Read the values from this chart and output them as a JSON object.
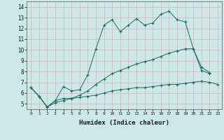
{
  "xlabel": "Humidex (Indice chaleur)",
  "bg_color": "#cce8e8",
  "grid_color": "#ddb8b8",
  "line_color": "#1a6b5e",
  "xlim": [
    -0.5,
    23.5
  ],
  "ylim": [
    4.5,
    14.5
  ],
  "xticks": [
    0,
    1,
    2,
    3,
    4,
    5,
    6,
    7,
    8,
    9,
    10,
    11,
    12,
    13,
    14,
    15,
    16,
    17,
    18,
    19,
    20,
    21,
    22,
    23
  ],
  "yticks": [
    5,
    6,
    7,
    8,
    9,
    10,
    11,
    12,
    13,
    14
  ],
  "series": [
    [
      6.5,
      5.7,
      4.7,
      5.3,
      6.6,
      6.2,
      6.3,
      7.7,
      10.1,
      12.3,
      12.8,
      11.7,
      12.3,
      12.9,
      12.3,
      12.5,
      13.3,
      13.6,
      12.8,
      12.6,
      10.1,
      8.1,
      7.8,
      null
    ],
    [
      6.5,
      5.7,
      4.7,
      5.3,
      5.5,
      5.5,
      5.6,
      5.7,
      5.8,
      6.0,
      6.2,
      6.3,
      6.4,
      6.5,
      6.5,
      6.6,
      6.7,
      6.8,
      6.8,
      6.9,
      7.0,
      7.1,
      7.0,
      6.8
    ],
    [
      6.5,
      5.7,
      4.7,
      5.1,
      5.3,
      5.5,
      5.8,
      6.2,
      6.8,
      7.3,
      7.8,
      8.1,
      8.4,
      8.7,
      8.9,
      9.1,
      9.4,
      9.7,
      9.9,
      10.1,
      10.1,
      8.4,
      7.9,
      null
    ]
  ]
}
